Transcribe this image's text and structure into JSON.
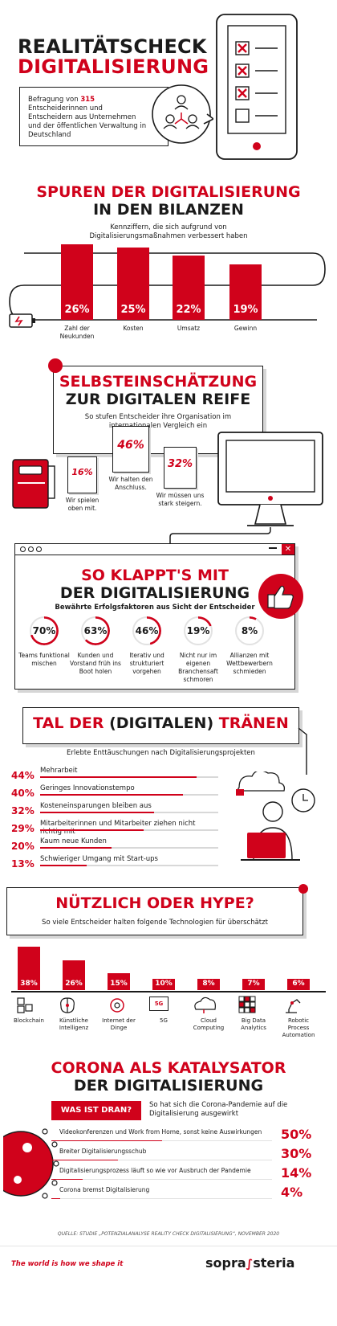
{
  "header": {
    "title_line1": "REALITÄTSCHECK",
    "title_line2": "DIGITALISIERUNG",
    "survey_pre": "Befragung von ",
    "survey_count": "315",
    "survey_post": " Entscheiderinnen und Entscheidern aus Unternehmen und der öffentlichen Verwaltung in Deutschland"
  },
  "section1": {
    "title_line1": "SPUREN DER DIGITALISIERUNG",
    "title_line2": "IN DEN BILANZEN",
    "subtitle": "Kennziffern, die sich aufgrund von Digitalisierungsmaßnahmen verbessert haben"
  },
  "section2": {
    "title_line1": "SELBSTEINSCHÄTZUNG",
    "title_line2": "ZUR DIGITALEN REIFE",
    "subtitle": "So stufen Entscheider ihre Organisation im internationalen Vergleich ein"
  },
  "section3": {
    "title_line1": "SO KLAPPT'S MIT",
    "title_line2": "DER DIGITALISIERUNG",
    "subtitle": "Bewährte Erfolgsfaktoren aus Sicht der Entscheider"
  },
  "section4": {
    "title_pre": "TAL DER ",
    "title_mid": "(DIGITALEN)",
    "title_post": " TRÄNEN",
    "subtitle": "Erlebte Enttäuschungen nach Digitalisierungsprojekten"
  },
  "section5": {
    "title": "NÜTZLICH ODER HYPE?",
    "subtitle": "So viele Entscheider halten folgende Technologien für überschätzt",
    "fiveg_icon_text": "5G"
  },
  "section6": {
    "title_line1": "CORONA ALS KATALYSATOR",
    "title_line2": "DER DIGITALISIERUNG",
    "badge": "WAS IST DRAN?",
    "subtitle": "So hat sich die Corona-Pandemie auf die Digitalisierung ausgewirkt"
  },
  "footer": {
    "source": "QUELLE: STUDIE „POTENZIALANALYSE REALITY CHECK DIGITALISIERUNG“, NOVEMBER 2020",
    "tagline": "The world is how we shape it",
    "logo_left": "sopra",
    "logo_right": "steria"
  },
  "colors": {
    "accent": "#d0021b",
    "text": "#1a1a1a",
    "track": "#d8d8d8"
  },
  "icons": [
    "phone-icon",
    "checkbox-x-icon",
    "people-network-icon",
    "battery-icon",
    "document-icon",
    "monitor-icon",
    "browser-window-icon",
    "thumbs-up-icon",
    "cloud-lock-icon",
    "clock-icon",
    "laptop-person-icon",
    "virus-icon",
    "blockchain-icon",
    "brain-icon",
    "iot-icon",
    "5g-icon",
    "cloud-icon",
    "cube-icon",
    "robot-arm-icon"
  ],
  "chart_data": [
    {
      "type": "bar",
      "categories": [
        "Zahl der Neukunden",
        "Kosten",
        "Umsatz",
        "Gewinn"
      ],
      "values": [
        26,
        25,
        22,
        19
      ],
      "labels": [
        "26%",
        "25%",
        "22%",
        "19%"
      ]
    },
    {
      "type": "table",
      "items": [
        {
          "value": 16,
          "label": "16%",
          "text": "Wir spielen oben mit."
        },
        {
          "value": 46,
          "label": "46%",
          "text": "Wir halten den Anschluss."
        },
        {
          "value": 32,
          "label": "32%",
          "text": "Wir müssen uns stark steigern."
        }
      ]
    },
    {
      "type": "pie",
      "items": [
        {
          "value": 70,
          "label": "70%",
          "text": "Teams funktional mischen"
        },
        {
          "value": 63,
          "label": "63%",
          "text": "Kunden und Vorstand früh ins Boot holen"
        },
        {
          "value": 46,
          "label": "46%",
          "text": "Iterativ und strukturiert vorgehen"
        },
        {
          "value": 19,
          "label": "19%",
          "text": "Nicht nur im eigenen Branchensaft schmoren"
        },
        {
          "value": 8,
          "label": "8%",
          "text": "Allianzen mit Wettbewerbern schmieden"
        }
      ]
    },
    {
      "type": "bar",
      "orientation": "horizontal",
      "items": [
        {
          "value": 44,
          "label": "44%",
          "text": "Mehrarbeit"
        },
        {
          "value": 40,
          "label": "40%",
          "text": "Geringes Innovationstempo"
        },
        {
          "value": 32,
          "label": "32%",
          "text": "Kosteneinsparungen bleiben aus"
        },
        {
          "value": 29,
          "label": "29%",
          "text": "Mitarbeiterinnen und Mitarbeiter ziehen nicht richtig mit"
        },
        {
          "value": 20,
          "label": "20%",
          "text": "Kaum neue Kunden"
        },
        {
          "value": 13,
          "label": "13%",
          "text": "Schwieriger Umgang mit Start-ups"
        }
      ]
    },
    {
      "type": "bar",
      "categories": [
        "Blockchain",
        "Künstliche Intelligenz",
        "Internet der Dinge",
        "5G",
        "Cloud Computing",
        "Big Data Analytics",
        "Robotic Process Automation"
      ],
      "values": [
        38,
        26,
        15,
        10,
        8,
        7,
        6
      ],
      "labels": [
        "38%",
        "26%",
        "15%",
        "10%",
        "8%",
        "7%",
        "6%"
      ]
    },
    {
      "type": "bar",
      "orientation": "horizontal",
      "items": [
        {
          "value": 50,
          "label": "50%",
          "text": "Videokonferenzen und Work from Home, sonst keine Auswirkungen"
        },
        {
          "value": 30,
          "label": "30%",
          "text": "Breiter Digitalisierungsschub"
        },
        {
          "value": 14,
          "label": "14%",
          "text": "Digitalisierungsprozess läuft so wie vor Ausbruch der Pandemie"
        },
        {
          "value": 4,
          "label": "4%",
          "text": "Corona bremst Digitalisierung"
        }
      ]
    }
  ]
}
